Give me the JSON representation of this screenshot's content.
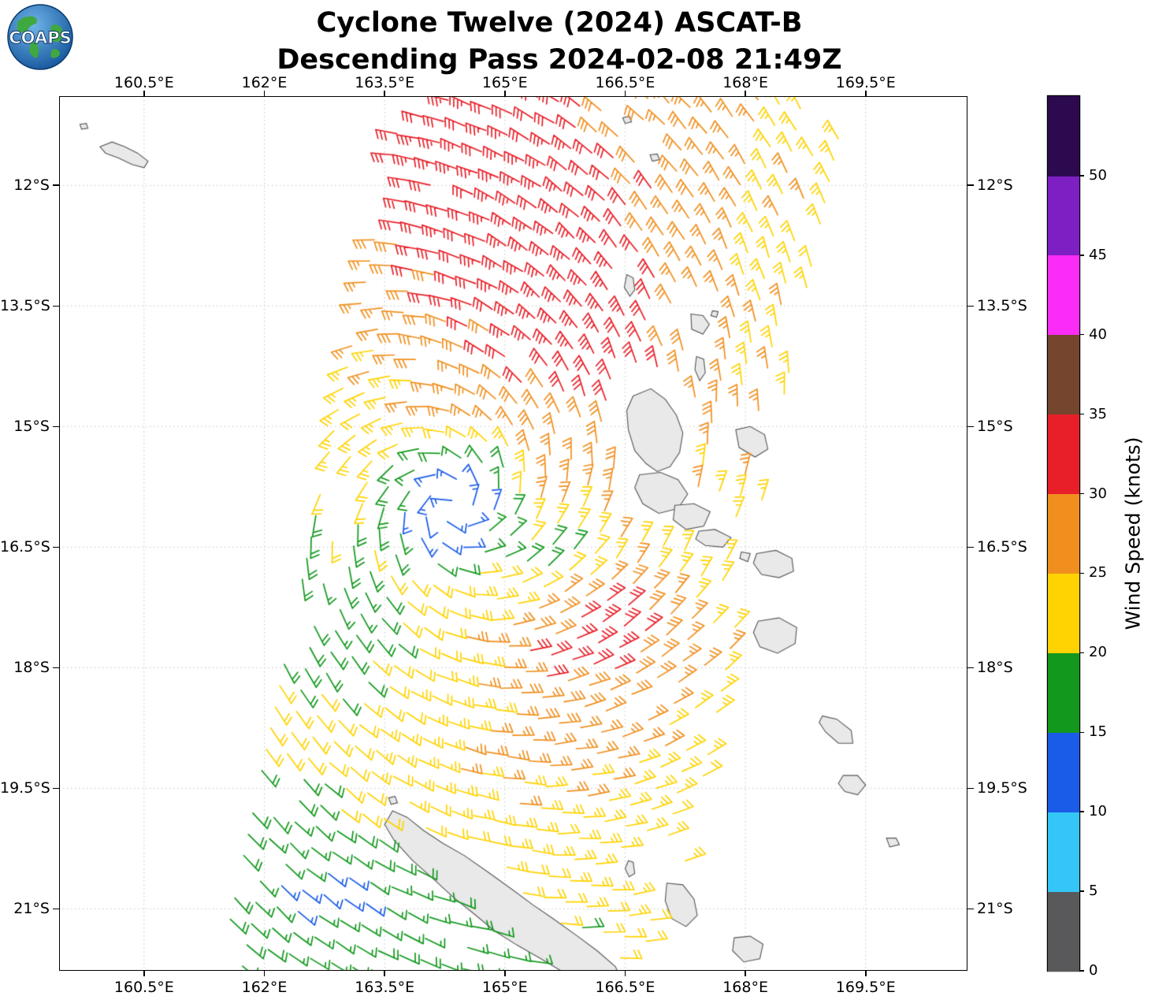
{
  "header": {
    "title_line1": "Cyclone Twelve (2024) ASCAT-B",
    "title_line2": "Descending Pass 2024-02-08 21:49Z",
    "logo_text": "COAPS"
  },
  "chart_data": {
    "type": "wind_barb_map",
    "x_axis": {
      "ticks": [
        160.5,
        162,
        163.5,
        165,
        166.5,
        168,
        169.5
      ],
      "suffix": "°E",
      "range": [
        159.44,
        170.77
      ]
    },
    "y_axis": {
      "ticks": [
        12,
        13.5,
        15,
        16.5,
        18,
        19.5,
        21
      ],
      "suffix": "°S",
      "range": [
        -10.89,
        -21.77
      ]
    },
    "colorbar": {
      "label": "Wind Speed (knots)",
      "tick_values": [
        0,
        5,
        10,
        15,
        20,
        25,
        30,
        35,
        40,
        45,
        50
      ],
      "bins": [
        {
          "min": 0,
          "max": 5,
          "color": "#59595b"
        },
        {
          "min": 5,
          "max": 10,
          "color": "#33c6f7"
        },
        {
          "min": 10,
          "max": 15,
          "color": "#1a5ce8"
        },
        {
          "min": 15,
          "max": 20,
          "color": "#12991d"
        },
        {
          "min": 20,
          "max": 25,
          "color": "#ffd300"
        },
        {
          "min": 25,
          "max": 30,
          "color": "#f08f1e"
        },
        {
          "min": 30,
          "max": 35,
          "color": "#e81f28"
        },
        {
          "min": 35,
          "max": 40,
          "color": "#76452e"
        },
        {
          "min": 40,
          "max": 45,
          "color": "#fb2cf8"
        },
        {
          "min": 45,
          "max": 50,
          "color": "#7e1fc4"
        },
        {
          "min": 50,
          "max": 55,
          "color": "#2d0a50"
        }
      ]
    },
    "cyclone": {
      "center_lon": 164.35,
      "center_lat": -15.97,
      "core_speed": 12,
      "ramp": [
        0.32,
        1.25
      ],
      "ramp_amp": 10.5,
      "inflow_deg": 18,
      "rotation": "clockwise"
    },
    "swath": {
      "lon0": 166.51,
      "lat0": -10.89,
      "dlon_dlat": 0.2123,
      "half_width": 2.7,
      "spacing": 0.27
    },
    "speed_field": {
      "noise": 1.3,
      "bumps": [
        {
          "lon": 164.5,
          "lat": -11.5,
          "sx": 2.2,
          "sy": 1.1,
          "amp": 10
        },
        {
          "lon": 166.0,
          "lat": -13.6,
          "sx": 0.9,
          "sy": 0.9,
          "amp": 7
        },
        {
          "lon": 166.15,
          "lat": -17.55,
          "sx": 0.8,
          "sy": 0.55,
          "amp": 9.5
        },
        {
          "lon": 166.6,
          "lat": -15.0,
          "sx": 1.3,
          "sy": 1.2,
          "amp": 4.5
        },
        {
          "lon": 164.6,
          "lat": -13.5,
          "sx": 1.2,
          "sy": 1.0,
          "amp": 4
        },
        {
          "lon": 165.6,
          "lat": -18.9,
          "sx": 1.0,
          "sy": 0.8,
          "amp": 4
        },
        {
          "lon": 162.85,
          "lat": -17.25,
          "sx": 0.7,
          "sy": 0.75,
          "amp": -5.5
        },
        {
          "lon": 162.4,
          "lat": -19.9,
          "sx": 0.5,
          "sy": 0.6,
          "amp": -5
        },
        {
          "lon": 163.6,
          "lat": -20.9,
          "sx": 0.9,
          "sy": 0.55,
          "amp": -6
        },
        {
          "lon": 165.0,
          "lat": -21.6,
          "sx": 0.8,
          "sy": 0.45,
          "amp": -5
        },
        {
          "lon": 165.6,
          "lat": -16.75,
          "sx": 0.5,
          "sy": 0.35,
          "amp": -7
        },
        {
          "lon": 162.2,
          "lat": -21.2,
          "sx": 0.7,
          "sy": 0.6,
          "amp": -5
        }
      ]
    },
    "islands": [
      {
        "name": "solomon-islet",
        "points": [
          [
            159.95,
            -11.52
          ],
          [
            160.1,
            -11.46
          ],
          [
            160.26,
            -11.52
          ],
          [
            160.42,
            -11.6
          ],
          [
            160.55,
            -11.7
          ],
          [
            160.5,
            -11.78
          ],
          [
            160.35,
            -11.74
          ],
          [
            160.18,
            -11.66
          ],
          [
            160.02,
            -11.6
          ]
        ]
      },
      {
        "name": "solomon-dot",
        "points": [
          [
            159.7,
            -11.24
          ],
          [
            159.78,
            -11.23
          ],
          [
            159.8,
            -11.29
          ],
          [
            159.72,
            -11.3
          ]
        ]
      },
      {
        "name": "banks-islet-1",
        "points": [
          [
            166.47,
            -11.16
          ],
          [
            166.55,
            -11.14
          ],
          [
            166.58,
            -11.21
          ],
          [
            166.5,
            -11.23
          ]
        ]
      },
      {
        "name": "banks-islet-2",
        "points": [
          [
            166.81,
            -11.62
          ],
          [
            166.9,
            -11.61
          ],
          [
            166.93,
            -11.68
          ],
          [
            166.84,
            -11.7
          ]
        ]
      },
      {
        "name": "maewo",
        "points": [
          [
            166.52,
            -13.11
          ],
          [
            166.6,
            -13.15
          ],
          [
            166.62,
            -13.3
          ],
          [
            166.56,
            -13.38
          ],
          [
            166.49,
            -13.27
          ]
        ]
      },
      {
        "name": "ambae",
        "points": [
          [
            167.32,
            -13.6
          ],
          [
            167.47,
            -13.62
          ],
          [
            167.55,
            -13.73
          ],
          [
            167.47,
            -13.85
          ],
          [
            167.33,
            -13.79
          ]
        ]
      },
      {
        "name": "islet-dot",
        "points": [
          [
            167.59,
            -13.56
          ],
          [
            167.66,
            -13.57
          ],
          [
            167.64,
            -13.64
          ],
          [
            167.57,
            -13.62
          ]
        ]
      },
      {
        "name": "pentecost",
        "points": [
          [
            167.39,
            -14.13
          ],
          [
            167.48,
            -14.16
          ],
          [
            167.5,
            -14.33
          ],
          [
            167.43,
            -14.43
          ],
          [
            167.37,
            -14.29
          ]
        ]
      },
      {
        "name": "espiritu-santo",
        "points": [
          [
            166.6,
            -14.62
          ],
          [
            166.82,
            -14.53
          ],
          [
            167.0,
            -14.66
          ],
          [
            167.14,
            -14.86
          ],
          [
            167.22,
            -15.08
          ],
          [
            167.18,
            -15.32
          ],
          [
            167.06,
            -15.5
          ],
          [
            166.9,
            -15.56
          ],
          [
            166.76,
            -15.46
          ],
          [
            166.62,
            -15.3
          ],
          [
            166.54,
            -15.04
          ],
          [
            166.52,
            -14.8
          ]
        ]
      },
      {
        "name": "east-island",
        "points": [
          [
            167.88,
            -15.04
          ],
          [
            168.06,
            -15.0
          ],
          [
            168.24,
            -15.1
          ],
          [
            168.28,
            -15.28
          ],
          [
            168.12,
            -15.38
          ],
          [
            167.92,
            -15.26
          ]
        ]
      },
      {
        "name": "malakula",
        "points": [
          [
            166.68,
            -15.6
          ],
          [
            166.94,
            -15.57
          ],
          [
            167.16,
            -15.66
          ],
          [
            167.28,
            -15.84
          ],
          [
            167.16,
            -16.02
          ],
          [
            166.92,
            -16.08
          ],
          [
            166.72,
            -15.96
          ],
          [
            166.62,
            -15.76
          ]
        ]
      },
      {
        "name": "ambrym",
        "points": [
          [
            167.12,
            -15.98
          ],
          [
            167.36,
            -15.96
          ],
          [
            167.56,
            -16.06
          ],
          [
            167.48,
            -16.24
          ],
          [
            167.26,
            -16.28
          ],
          [
            167.1,
            -16.16
          ]
        ]
      },
      {
        "name": "epi",
        "points": [
          [
            167.42,
            -16.3
          ],
          [
            167.62,
            -16.28
          ],
          [
            167.82,
            -16.38
          ],
          [
            167.72,
            -16.5
          ],
          [
            167.5,
            -16.48
          ],
          [
            167.38,
            -16.4
          ]
        ]
      },
      {
        "name": "shepherd-islet",
        "points": [
          [
            167.95,
            -16.56
          ],
          [
            168.06,
            -16.58
          ],
          [
            168.03,
            -16.68
          ],
          [
            167.93,
            -16.64
          ]
        ]
      },
      {
        "name": "efate",
        "points": [
          [
            168.14,
            -16.58
          ],
          [
            168.38,
            -16.54
          ],
          [
            168.58,
            -16.64
          ],
          [
            168.6,
            -16.8
          ],
          [
            168.42,
            -16.88
          ],
          [
            168.2,
            -16.84
          ],
          [
            168.1,
            -16.7
          ]
        ]
      },
      {
        "name": "erromango",
        "points": [
          [
            168.16,
            -17.42
          ],
          [
            168.42,
            -17.38
          ],
          [
            168.64,
            -17.5
          ],
          [
            168.62,
            -17.7
          ],
          [
            168.4,
            -17.82
          ],
          [
            168.18,
            -17.74
          ],
          [
            168.1,
            -17.56
          ]
        ]
      },
      {
        "name": "tanna",
        "points": [
          [
            168.96,
            -18.6
          ],
          [
            169.14,
            -18.64
          ],
          [
            169.32,
            -18.78
          ],
          [
            169.34,
            -18.94
          ],
          [
            169.16,
            -18.94
          ],
          [
            169.0,
            -18.8
          ],
          [
            168.92,
            -18.68
          ]
        ]
      },
      {
        "name": "aneityum",
        "points": [
          [
            169.22,
            -19.34
          ],
          [
            169.4,
            -19.34
          ],
          [
            169.5,
            -19.46
          ],
          [
            169.4,
            -19.58
          ],
          [
            169.24,
            -19.54
          ],
          [
            169.16,
            -19.44
          ]
        ]
      },
      {
        "name": "islet-se",
        "points": [
          [
            169.76,
            -20.12
          ],
          [
            169.88,
            -20.12
          ],
          [
            169.92,
            -20.2
          ],
          [
            169.8,
            -20.23
          ]
        ]
      },
      {
        "name": "belep-islet",
        "points": [
          [
            163.55,
            -19.62
          ],
          [
            163.63,
            -19.6
          ],
          [
            163.66,
            -19.68
          ],
          [
            163.58,
            -19.7
          ]
        ]
      },
      {
        "name": "grande-terre",
        "points": [
          [
            163.6,
            -19.78
          ],
          [
            163.78,
            -19.86
          ],
          [
            163.98,
            -20.02
          ],
          [
            164.22,
            -20.18
          ],
          [
            164.5,
            -20.34
          ],
          [
            164.8,
            -20.55
          ],
          [
            165.08,
            -20.75
          ],
          [
            165.35,
            -20.95
          ],
          [
            165.6,
            -21.12
          ],
          [
            165.88,
            -21.32
          ],
          [
            166.15,
            -21.52
          ],
          [
            166.38,
            -21.72
          ],
          [
            166.48,
            -21.95
          ],
          [
            166.5,
            -22.1
          ],
          [
            166.0,
            -22.1
          ],
          [
            165.75,
            -21.8
          ],
          [
            165.45,
            -21.62
          ],
          [
            165.15,
            -21.45
          ],
          [
            164.88,
            -21.28
          ],
          [
            164.6,
            -21.05
          ],
          [
            164.35,
            -20.85
          ],
          [
            164.1,
            -20.62
          ],
          [
            163.85,
            -20.4
          ],
          [
            163.62,
            -20.15
          ],
          [
            163.5,
            -19.95
          ]
        ]
      },
      {
        "name": "loyalty-islet",
        "points": [
          [
            166.54,
            -20.4
          ],
          [
            166.6,
            -20.42
          ],
          [
            166.62,
            -20.56
          ],
          [
            166.55,
            -20.6
          ],
          [
            166.5,
            -20.5
          ]
        ]
      },
      {
        "name": "lifou",
        "points": [
          [
            167.02,
            -20.68
          ],
          [
            167.22,
            -20.7
          ],
          [
            167.36,
            -20.88
          ],
          [
            167.4,
            -21.08
          ],
          [
            167.26,
            -21.22
          ],
          [
            167.08,
            -21.12
          ],
          [
            167.0,
            -20.9
          ]
        ]
      },
      {
        "name": "mare",
        "points": [
          [
            167.86,
            -21.36
          ],
          [
            168.06,
            -21.34
          ],
          [
            168.22,
            -21.44
          ],
          [
            168.18,
            -21.62
          ],
          [
            167.98,
            -21.66
          ],
          [
            167.84,
            -21.52
          ]
        ]
      }
    ]
  }
}
